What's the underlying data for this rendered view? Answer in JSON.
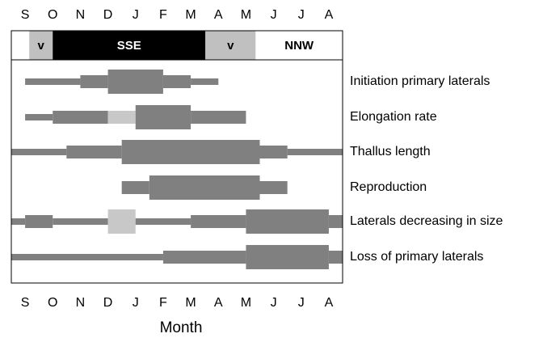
{
  "chart_data": {
    "type": "phenology",
    "x_label": "Month",
    "months": [
      "S",
      "O",
      "N",
      "D",
      "J",
      "F",
      "M",
      "A",
      "M",
      "J",
      "J",
      "A"
    ],
    "xlim": [
      -0.5,
      11.5
    ],
    "wind_band": [
      {
        "start": -0.5,
        "end": 0.15,
        "color": "#ffffff"
      },
      {
        "start": 0.15,
        "end": 1,
        "label": "v",
        "color": "#c0c0c0"
      },
      {
        "start": 1,
        "end": 6.53,
        "label": "SSE",
        "color": "#000000"
      },
      {
        "start": 6.53,
        "end": 8.35,
        "label": "v",
        "color": "#c0c0c0"
      },
      {
        "start": 8.35,
        "end": 11.5,
        "label": "NNW",
        "color": "#ffffff"
      }
    ],
    "rows": [
      {
        "name": "Initiation primary laterals",
        "segments": [
          {
            "start": 0,
            "end": 2,
            "level": 1,
            "color": "#808080"
          },
          {
            "start": 2,
            "end": 3,
            "level": 2,
            "color": "#808080"
          },
          {
            "start": 3,
            "end": 5,
            "level": 3,
            "color": "#808080"
          },
          {
            "start": 5,
            "end": 6,
            "level": 2,
            "color": "#808080"
          },
          {
            "start": 6,
            "end": 7,
            "level": 1,
            "color": "#808080"
          }
        ]
      },
      {
        "name": "Elongation rate",
        "segments": [
          {
            "start": 0,
            "end": 1,
            "level": 1,
            "color": "#808080"
          },
          {
            "start": 1,
            "end": 3,
            "level": 2,
            "color": "#808080"
          },
          {
            "start": 3,
            "end": 4,
            "level": 2,
            "color": "#c8c8c8"
          },
          {
            "start": 4,
            "end": 6,
            "level": 3,
            "color": "#808080"
          },
          {
            "start": 6,
            "end": 8,
            "level": 2,
            "color": "#808080"
          }
        ]
      },
      {
        "name": "Thallus length",
        "segments": [
          {
            "start": -0.5,
            "end": 1.5,
            "level": 1,
            "color": "#808080"
          },
          {
            "start": 1.5,
            "end": 3.5,
            "level": 2,
            "color": "#808080"
          },
          {
            "start": 3.5,
            "end": 8.5,
            "level": 3,
            "color": "#808080"
          },
          {
            "start": 8.5,
            "end": 9.5,
            "level": 2,
            "color": "#808080"
          },
          {
            "start": 9.5,
            "end": 11.5,
            "level": 1,
            "color": "#808080"
          }
        ]
      },
      {
        "name": "Reproduction",
        "segments": [
          {
            "start": 3.5,
            "end": 4.5,
            "level": 2,
            "color": "#808080"
          },
          {
            "start": 4.5,
            "end": 8.5,
            "level": 3,
            "color": "#808080"
          },
          {
            "start": 8.5,
            "end": 9.5,
            "level": 2,
            "color": "#808080"
          }
        ]
      },
      {
        "name": "Laterals decreasing in size",
        "segments": [
          {
            "start": -0.5,
            "end": 0,
            "level": 1,
            "color": "#808080"
          },
          {
            "start": 0,
            "end": 1,
            "level": 2,
            "color": "#808080"
          },
          {
            "start": 1,
            "end": 3,
            "level": 1,
            "color": "#808080"
          },
          {
            "start": 3,
            "end": 4,
            "level": 3,
            "color": "#c8c8c8"
          },
          {
            "start": 4,
            "end": 6,
            "level": 1,
            "color": "#808080"
          },
          {
            "start": 6,
            "end": 8,
            "level": 2,
            "color": "#808080"
          },
          {
            "start": 8,
            "end": 11,
            "level": 3,
            "color": "#808080"
          },
          {
            "start": 11,
            "end": 11.5,
            "level": 2,
            "color": "#808080"
          }
        ]
      },
      {
        "name": "Loss of primary laterals",
        "segments": [
          {
            "start": -0.5,
            "end": 5,
            "level": 1,
            "color": "#808080"
          },
          {
            "start": 5,
            "end": 8,
            "level": 2,
            "color": "#808080"
          },
          {
            "start": 8,
            "end": 11,
            "level": 3,
            "color": "#808080"
          },
          {
            "start": 11,
            "end": 11.5,
            "level": 2,
            "color": "#808080"
          }
        ]
      }
    ]
  }
}
